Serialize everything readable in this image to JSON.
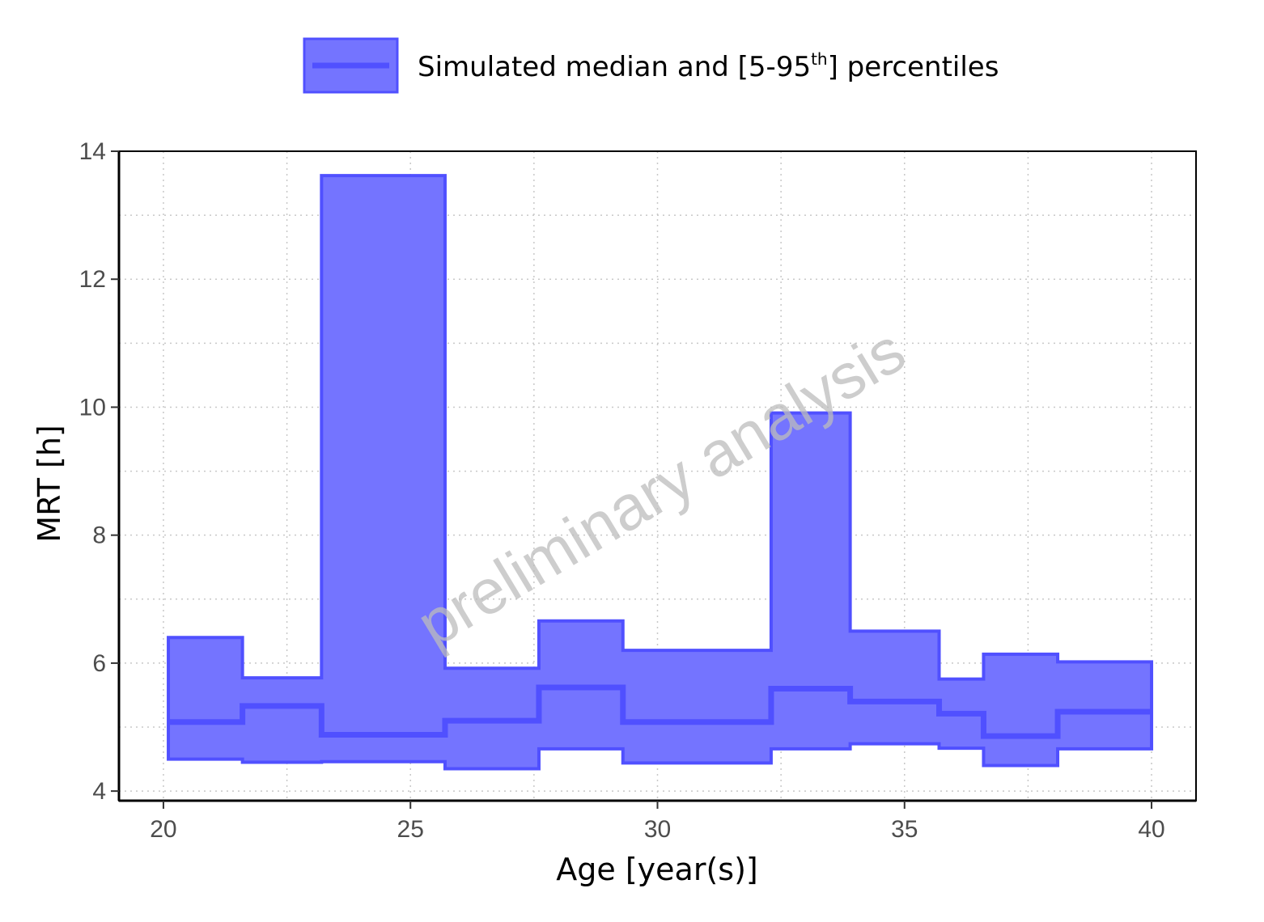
{
  "chart_data": {
    "type": "area",
    "xlabel": "Age [year(s)]",
    "ylabel": "MRT [h]",
    "xlim": [
      19.1,
      40.9
    ],
    "ylim": [
      3.85,
      14.0
    ],
    "xticks": [
      20,
      25,
      30,
      35,
      40
    ],
    "yticks": [
      4,
      6,
      8,
      10,
      12,
      14
    ],
    "grid": true,
    "legend": {
      "position": "top",
      "text_before": "Simulated median and [5-95",
      "superscript": "th",
      "text_after": "] percentiles"
    },
    "watermark": "preliminary analysis",
    "colors": {
      "band_fill": "#7474ff",
      "line": "#5050ff",
      "axis": "#000000"
    },
    "bins": [
      {
        "x_start": 20.1,
        "x_end": 21.6,
        "p5": 4.5,
        "median": 5.08,
        "p95": 6.4
      },
      {
        "x_start": 21.6,
        "x_end": 23.2,
        "p5": 4.45,
        "median": 5.33,
        "p95": 5.77
      },
      {
        "x_start": 23.2,
        "x_end": 25.7,
        "p5": 4.46,
        "median": 4.88,
        "p95": 13.62
      },
      {
        "x_start": 25.7,
        "x_end": 27.6,
        "p5": 4.35,
        "median": 5.1,
        "p95": 5.92
      },
      {
        "x_start": 27.6,
        "x_end": 29.3,
        "p5": 4.66,
        "median": 5.62,
        "p95": 6.66
      },
      {
        "x_start": 29.3,
        "x_end": 32.3,
        "p5": 4.44,
        "median": 5.08,
        "p95": 6.2
      },
      {
        "x_start": 32.3,
        "x_end": 33.9,
        "p5": 4.66,
        "median": 5.6,
        "p95": 9.91
      },
      {
        "x_start": 33.9,
        "x_end": 35.7,
        "p5": 4.74,
        "median": 5.4,
        "p95": 6.5
      },
      {
        "x_start": 35.7,
        "x_end": 36.6,
        "p5": 4.67,
        "median": 5.21,
        "p95": 5.75
      },
      {
        "x_start": 36.6,
        "x_end": 38.1,
        "p5": 4.4,
        "median": 4.86,
        "p95": 6.14
      },
      {
        "x_start": 38.1,
        "x_end": 40.0,
        "p5": 4.66,
        "median": 5.24,
        "p95": 6.02
      }
    ]
  }
}
